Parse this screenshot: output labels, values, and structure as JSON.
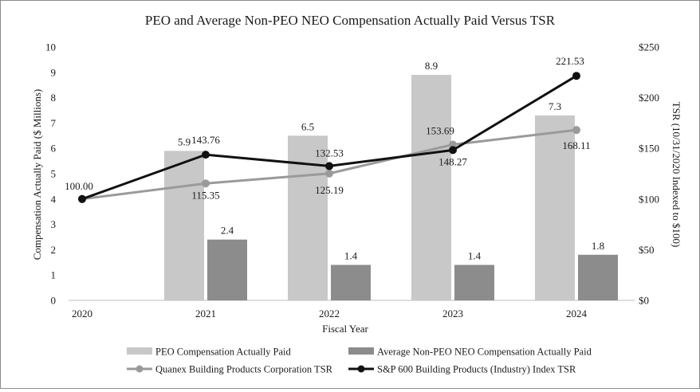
{
  "chart_data": {
    "type": "bar+line",
    "title": "PEO and Average Non-PEO NEO Compensation Actually Paid Versus TSR",
    "xlabel": "Fiscal Year",
    "ylabel_left": "Compensation Actually Paid ($ Millions)",
    "ylabel_right": "TSR (10/31/2020 Indexed to $100)",
    "categories": [
      "2020",
      "2021",
      "2022",
      "2023",
      "2024"
    ],
    "ylim_left": [
      0,
      10
    ],
    "yticks_left": [
      "0",
      "1",
      "2",
      "3",
      "4",
      "5",
      "6",
      "7",
      "8",
      "9",
      "10"
    ],
    "ylim_right": [
      0,
      250
    ],
    "yticks_right": [
      "$0",
      "$50",
      "$100",
      "$150",
      "$200",
      "$250"
    ],
    "bar_series": [
      {
        "name": "PEO Compensation Actually Paid",
        "color": "#c8c8c8",
        "values": [
          null,
          5.9,
          6.5,
          8.9,
          7.3
        ],
        "labels": [
          "",
          "5.9",
          "6.5",
          "8.9",
          "7.3"
        ]
      },
      {
        "name": "Average Non-PEO NEO Compensation Actually Paid",
        "color": "#8c8c8c",
        "values": [
          null,
          2.4,
          1.4,
          1.4,
          1.8
        ],
        "labels": [
          "",
          "2.4",
          "1.4",
          "1.4",
          "1.8"
        ]
      }
    ],
    "line_series": [
      {
        "name": "Quanex Building Products Corporation TSR",
        "color": "#9a9a9a",
        "values": [
          100.0,
          115.35,
          125.19,
          153.69,
          168.11
        ],
        "labels": [
          "",
          "115.35",
          "125.19",
          "153.69",
          "168.11"
        ]
      },
      {
        "name": "S&P 600 Building Products (Industry) Index TSR",
        "color": "#111111",
        "values": [
          100.0,
          143.76,
          132.53,
          148.27,
          221.53
        ],
        "labels": [
          "100.00",
          "143.76",
          "132.53",
          "148.27",
          "221.53"
        ]
      }
    ],
    "legend_position": "bottom",
    "grid": false
  }
}
